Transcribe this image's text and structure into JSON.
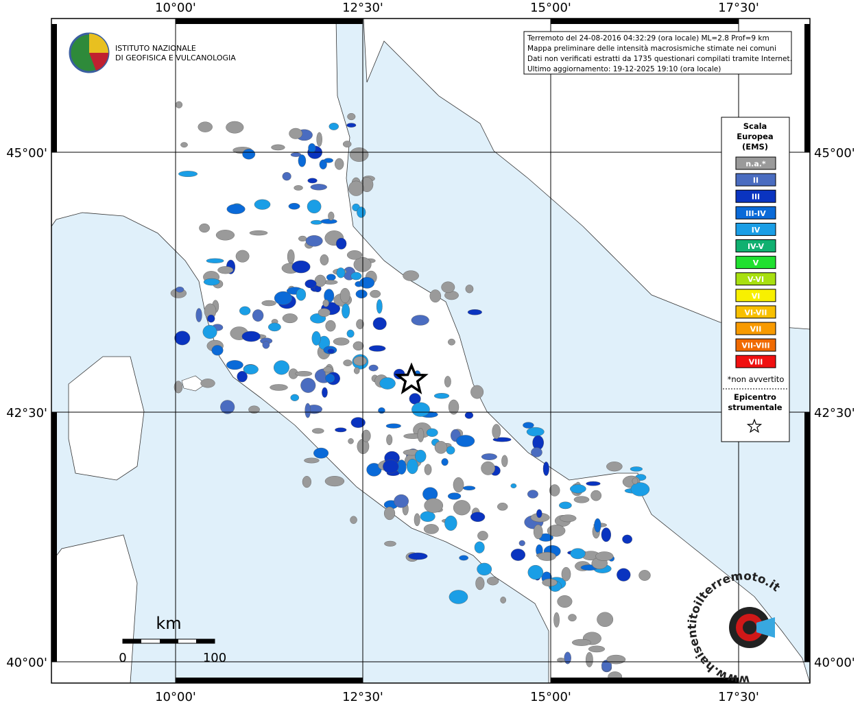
{
  "map": {
    "lon_labels": [
      "10°00'",
      "12°30'",
      "15°00'",
      "17°30'"
    ],
    "lat_labels": [
      "45°00'",
      "42°30'",
      "40°00'"
    ],
    "logo": [
      "ISTITUTO NAZIONALE",
      "DI GEOFISICA E VULCANOLOGIA"
    ],
    "info": [
      "Terremoto del 24-08-2016 04:32:29 (ora locale) ML=2.8 Prof=9 km",
      "Mappa preliminare delle intensità macrosismiche stimate nei comuni",
      "Dati non verificati estratti da 1735 questionari compilati tramite Internet.",
      "Ultimo aggiornamento: 19-12-2025 19:10 (ora locale)"
    ],
    "legend": {
      "title": [
        "Scala",
        "Europea",
        "(EMS)"
      ],
      "items": [
        {
          "label": "n.a.*",
          "color": "#9a9a9a"
        },
        {
          "label": "II",
          "color": "#4a6cc0"
        },
        {
          "label": "III",
          "color": "#0a34c0"
        },
        {
          "label": "III-IV",
          "color": "#0a6ad8"
        },
        {
          "label": "IV",
          "color": "#1a9ee6"
        },
        {
          "label": "IV-V",
          "color": "#10b070"
        },
        {
          "label": "V",
          "color": "#20e030"
        },
        {
          "label": "V-VI",
          "color": "#a8e010"
        },
        {
          "label": "VI",
          "color": "#f8f000"
        },
        {
          "label": "VI-VII",
          "color": "#f8c000"
        },
        {
          "label": "VII",
          "color": "#f89a00"
        },
        {
          "label": "VII-VIII",
          "color": "#f06a00"
        },
        {
          "label": "VIII",
          "color": "#f01010"
        }
      ],
      "note": "*non avvertito",
      "epicenter": [
        "Epicentro",
        "strumentale"
      ]
    },
    "scale_bar": {
      "unit": "km",
      "ticks": [
        "0",
        "100"
      ]
    },
    "watermark": "www.haisentitoilterremoto.it"
  }
}
